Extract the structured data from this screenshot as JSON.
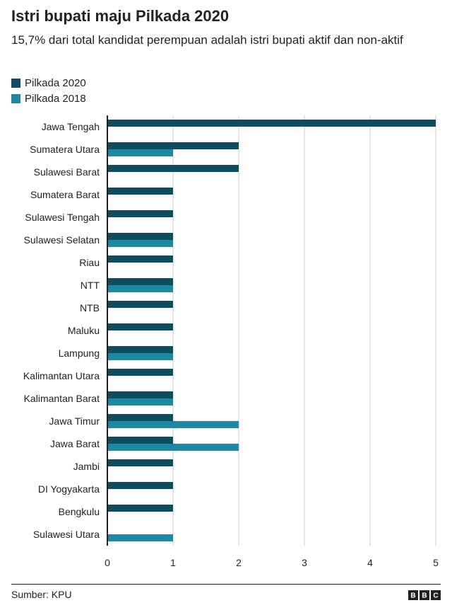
{
  "title": "Istri bupati maju Pilkada 2020",
  "subtitle": "15,7% dari total kandidat perempuan adalah istri bupati aktif dan non-aktif",
  "source": "Sumber: KPU",
  "logo_text": "BBC",
  "colors": {
    "pilkada_2020": "#114b5f",
    "pilkada_2018": "#1b88a6",
    "grid": "#cccccc",
    "axis": "#222222",
    "text": "#222222"
  },
  "chart_data": {
    "type": "bar",
    "orientation": "horizontal",
    "categories": [
      "Jawa Tengah",
      "Sumatera Utara",
      "Sulawesi Barat",
      "Sumatera Barat",
      "Sulawesi Tengah",
      "Sulawesi Selatan",
      "Riau",
      "NTT",
      "NTB",
      "Maluku",
      "Lampung",
      "Kalimantan Utara",
      "Kalimantan Barat",
      "Jawa Timur",
      "Jawa Barat",
      "Jambi",
      "DI Yogyakarta",
      "Bengkulu",
      "Sulawesi Utara"
    ],
    "series": [
      {
        "name": "Pilkada 2020",
        "values": [
          5,
          2,
          2,
          1,
          1,
          1,
          1,
          1,
          1,
          1,
          1,
          1,
          1,
          1,
          1,
          1,
          1,
          1,
          0
        ]
      },
      {
        "name": "Pilkada 2018",
        "values": [
          0,
          1,
          0,
          0,
          0,
          1,
          0,
          1,
          0,
          0,
          1,
          0,
          1,
          2,
          2,
          0,
          0,
          0,
          1
        ]
      }
    ],
    "xlim": [
      0,
      5
    ],
    "xticks": [
      "0",
      "1",
      "2",
      "3",
      "4",
      "5"
    ],
    "grid": true,
    "legend_position": "top-left"
  }
}
